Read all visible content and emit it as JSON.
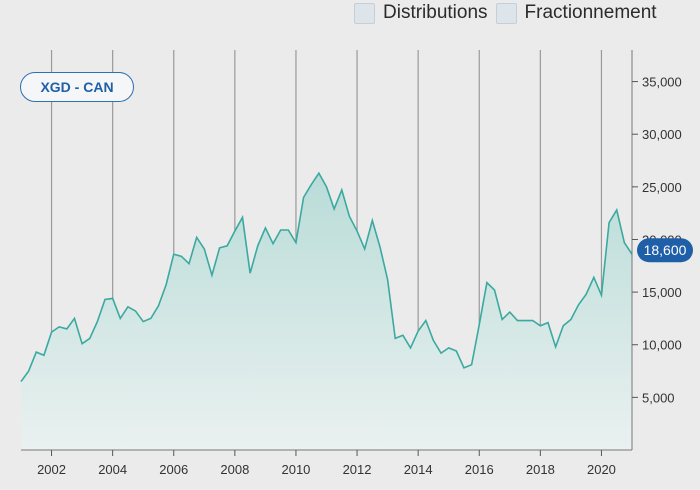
{
  "legend": {
    "items": [
      {
        "label": "Distributions"
      },
      {
        "label": "Fractionnement"
      }
    ]
  },
  "ticker": {
    "label": "XGD - CAN"
  },
  "current_value_label": "18,600",
  "colors": {
    "line": "#3aa9a0",
    "fill_top": "#b9dcd8",
    "fill_bottom": "#eaf1f0",
    "badge": "#1f5fa8",
    "grid": "#9a9a9a"
  },
  "chart_data": {
    "type": "area",
    "title": "",
    "xlabel": "",
    "ylabel": "",
    "xlim": [
      2001.0,
      2021.0
    ],
    "ylim": [
      0,
      38000
    ],
    "x_ticks": [
      2002,
      2004,
      2006,
      2008,
      2010,
      2012,
      2014,
      2016,
      2018,
      2020
    ],
    "x_tick_labels": [
      "2002",
      "2004",
      "2006",
      "2008",
      "2010",
      "2012",
      "2014",
      "2016",
      "2018",
      "2020"
    ],
    "y_ticks": [
      5000,
      10000,
      15000,
      20000,
      25000,
      30000,
      35000
    ],
    "y_tick_labels": [
      "5,000",
      "10,000",
      "15,000",
      "20,000",
      "25,000",
      "30,000",
      "35,000"
    ],
    "grid": "vertical",
    "series": [
      {
        "x": [
          2001.0,
          2001.25,
          2001.5,
          2001.75,
          2002.0,
          2002.25,
          2002.5,
          2002.75,
          2003.0,
          2003.25,
          2003.5,
          2003.75,
          2004.0,
          2004.25,
          2004.5,
          2004.75,
          2005.0,
          2005.25,
          2005.5,
          2005.75,
          2006.0,
          2006.25,
          2006.5,
          2006.75,
          2007.0,
          2007.25,
          2007.5,
          2007.75,
          2008.0,
          2008.25,
          2008.5,
          2008.75,
          2009.0,
          2009.25,
          2009.5,
          2009.75,
          2010.0,
          2010.25,
          2010.5,
          2010.75,
          2011.0,
          2011.25,
          2011.5,
          2011.75,
          2012.0,
          2012.25,
          2012.5,
          2012.75,
          2013.0,
          2013.25,
          2013.5,
          2013.75,
          2014.0,
          2014.25,
          2014.5,
          2014.75,
          2015.0,
          2015.25,
          2015.5,
          2015.75,
          2016.0,
          2016.25,
          2016.5,
          2016.75,
          2017.0,
          2017.25,
          2017.5,
          2017.75,
          2018.0,
          2018.25,
          2018.5,
          2018.75,
          2019.0,
          2019.25,
          2019.5,
          2019.75,
          2020.0,
          2020.25,
          2020.5,
          2020.75,
          2021.0
        ],
        "values": [
          6500,
          7500,
          9300,
          9000,
          11200,
          11700,
          11500,
          12500,
          10100,
          10600,
          12200,
          14300,
          14400,
          12500,
          13600,
          13200,
          12200,
          12500,
          13700,
          15700,
          18600,
          18400,
          17700,
          20200,
          19100,
          16600,
          19200,
          19400,
          20800,
          22100,
          16800,
          19400,
          21100,
          19600,
          20900,
          20900,
          19700,
          24000,
          25200,
          26300,
          25000,
          22900,
          24700,
          22200,
          20800,
          19100,
          21800,
          19300,
          16200,
          10600,
          10900,
          9700,
          11300,
          12300,
          10400,
          9200,
          9700,
          9400,
          7800,
          8100,
          11900,
          15900,
          15200,
          12400,
          13100,
          12300,
          12300,
          12300,
          11800,
          12100,
          9800,
          11800,
          12400,
          13800,
          14800,
          16400,
          14700,
          21600,
          22800,
          19700,
          18600
        ]
      }
    ]
  }
}
